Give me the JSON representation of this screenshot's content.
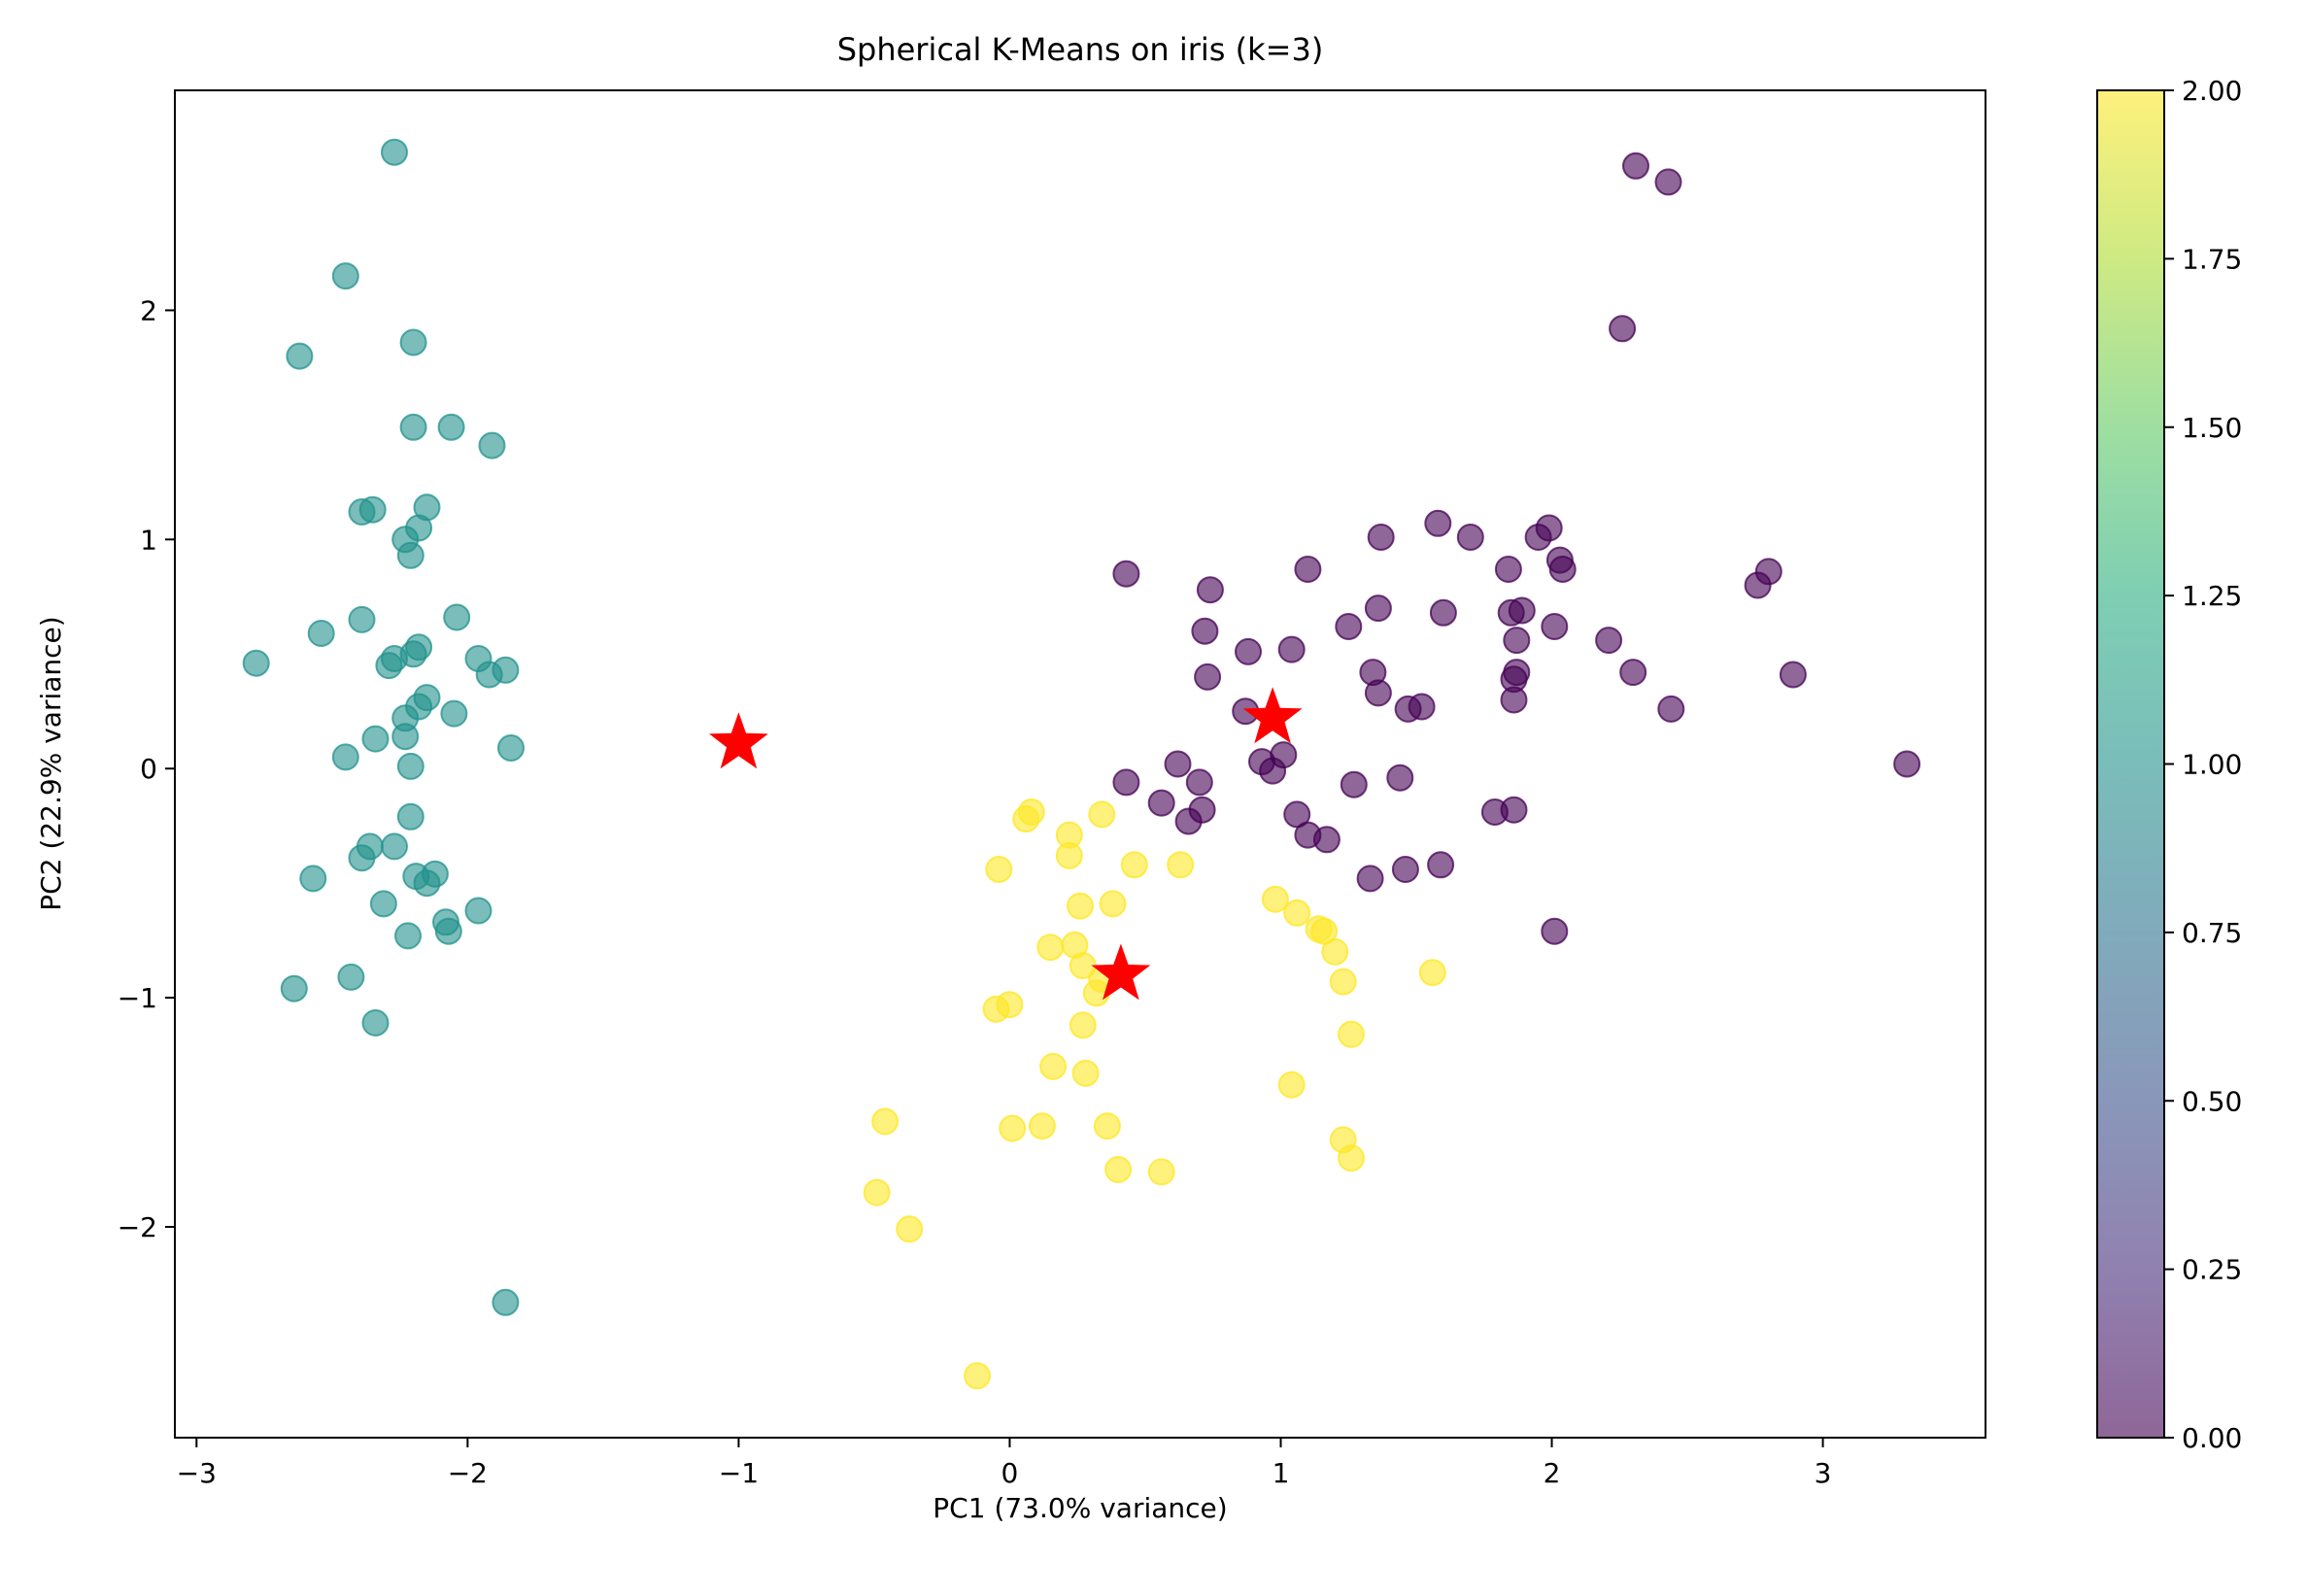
{
  "chart_data": {
    "type": "scatter",
    "title": "Spherical K-Means on iris (k=3)",
    "xlabel": "PC1 (73.0% variance)",
    "ylabel": "PC2 (22.9% variance)",
    "xlim": [
      -3.08,
      3.6
    ],
    "ylim": [
      -2.92,
      2.96
    ],
    "xticks": [
      -3,
      -2,
      -1,
      0,
      1,
      2,
      3
    ],
    "yticks": [
      -2,
      -1,
      0,
      1,
      2
    ],
    "grid": false,
    "colorbar": {
      "range": [
        0,
        2
      ],
      "ticks": [
        "0.00",
        "0.25",
        "0.50",
        "0.75",
        "1.00",
        "1.25",
        "1.50",
        "1.75",
        "2.00"
      ],
      "colormap": "viridis"
    },
    "cluster_colors": {
      "0": "#440154",
      "1": "#21918c",
      "2": "#fde725"
    },
    "centroid_color": "#ff0000",
    "point_alpha": 0.6,
    "series": [
      {
        "cluster": 1,
        "points": [
          [
            -2.27,
            2.69
          ],
          [
            -2.45,
            2.15
          ],
          [
            -2.62,
            1.8
          ],
          [
            -2.2,
            1.86
          ],
          [
            -2.2,
            1.49
          ],
          [
            -2.06,
            1.49
          ],
          [
            -1.91,
            1.41
          ],
          [
            -2.39,
            1.12
          ],
          [
            -2.35,
            1.13
          ],
          [
            -2.15,
            1.14
          ],
          [
            -2.18,
            1.05
          ],
          [
            -2.23,
            1.0
          ],
          [
            -2.21,
            0.93
          ],
          [
            -2.39,
            0.65
          ],
          [
            -2.54,
            0.59
          ],
          [
            -2.04,
            0.66
          ],
          [
            -2.78,
            0.46
          ],
          [
            -2.27,
            0.48
          ],
          [
            -2.29,
            0.45
          ],
          [
            -2.2,
            0.5
          ],
          [
            -2.18,
            0.53
          ],
          [
            -1.96,
            0.48
          ],
          [
            -1.92,
            0.41
          ],
          [
            -1.86,
            0.43
          ],
          [
            -2.15,
            0.31
          ],
          [
            -2.18,
            0.27
          ],
          [
            -2.23,
            0.22
          ],
          [
            -2.05,
            0.24
          ],
          [
            -2.34,
            0.13
          ],
          [
            -2.23,
            0.14
          ],
          [
            -1.84,
            0.09
          ],
          [
            -2.45,
            0.05
          ],
          [
            -2.21,
            0.01
          ],
          [
            -2.21,
            -0.21
          ],
          [
            -2.27,
            -0.34
          ],
          [
            -2.36,
            -0.34
          ],
          [
            -2.39,
            -0.39
          ],
          [
            -2.57,
            -0.48
          ],
          [
            -2.19,
            -0.47
          ],
          [
            -2.15,
            -0.5
          ],
          [
            -2.12,
            -0.46
          ],
          [
            -2.31,
            -0.59
          ],
          [
            -1.96,
            -0.62
          ],
          [
            -2.08,
            -0.67
          ],
          [
            -2.07,
            -0.71
          ],
          [
            -2.22,
            -0.73
          ],
          [
            -2.64,
            -0.96
          ],
          [
            -2.43,
            -0.91
          ],
          [
            -2.34,
            -1.11
          ],
          [
            -1.86,
            -2.33
          ]
        ]
      },
      {
        "cluster": 0,
        "points": [
          [
            2.31,
            2.63
          ],
          [
            2.43,
            2.56
          ],
          [
            2.26,
            1.92
          ],
          [
            0.43,
            0.85
          ],
          [
            0.74,
            0.78
          ],
          [
            1.1,
            0.87
          ],
          [
            1.37,
            1.01
          ],
          [
            1.58,
            1.07
          ],
          [
            1.7,
            1.01
          ],
          [
            1.95,
            1.01
          ],
          [
            1.99,
            1.05
          ],
          [
            2.03,
            0.91
          ],
          [
            2.04,
            0.87
          ],
          [
            2.76,
            0.8
          ],
          [
            2.8,
            0.86
          ],
          [
            1.84,
            0.87
          ],
          [
            0.72,
            0.6
          ],
          [
            0.88,
            0.51
          ],
          [
            1.04,
            0.52
          ],
          [
            1.25,
            0.62
          ],
          [
            1.36,
            0.7
          ],
          [
            1.6,
            0.68
          ],
          [
            1.85,
            0.68
          ],
          [
            1.89,
            0.69
          ],
          [
            1.87,
            0.56
          ],
          [
            2.01,
            0.62
          ],
          [
            2.21,
            0.56
          ],
          [
            0.73,
            0.4
          ],
          [
            1.34,
            0.42
          ],
          [
            1.36,
            0.33
          ],
          [
            1.47,
            0.26
          ],
          [
            1.52,
            0.27
          ],
          [
            1.86,
            0.39
          ],
          [
            1.87,
            0.42
          ],
          [
            1.86,
            0.3
          ],
          [
            2.3,
            0.42
          ],
          [
            2.44,
            0.26
          ],
          [
            2.89,
            0.41
          ],
          [
            0.87,
            0.25
          ],
          [
            0.93,
            0.03
          ],
          [
            0.97,
            -0.01
          ],
          [
            1.01,
            0.06
          ],
          [
            0.62,
            0.02
          ],
          [
            0.43,
            -0.06
          ],
          [
            0.7,
            -0.06
          ],
          [
            0.56,
            -0.15
          ],
          [
            0.66,
            -0.23
          ],
          [
            0.71,
            -0.18
          ],
          [
            1.06,
            -0.2
          ],
          [
            1.1,
            -0.29
          ],
          [
            1.17,
            -0.31
          ],
          [
            1.27,
            -0.07
          ],
          [
            1.44,
            -0.04
          ],
          [
            1.79,
            -0.19
          ],
          [
            1.86,
            -0.18
          ],
          [
            1.33,
            -0.48
          ],
          [
            1.46,
            -0.44
          ],
          [
            1.59,
            -0.42
          ],
          [
            2.01,
            -0.71
          ],
          [
            3.31,
            0.02
          ]
        ]
      },
      {
        "cluster": 2,
        "points": [
          [
            0.08,
            -0.19
          ],
          [
            0.06,
            -0.22
          ],
          [
            0.34,
            -0.2
          ],
          [
            0.22,
            -0.29
          ],
          [
            0.22,
            -0.38
          ],
          [
            -0.04,
            -0.44
          ],
          [
            0.46,
            -0.42
          ],
          [
            0.63,
            -0.42
          ],
          [
            0.26,
            -0.6
          ],
          [
            0.38,
            -0.59
          ],
          [
            0.98,
            -0.57
          ],
          [
            1.06,
            -0.63
          ],
          [
            1.14,
            -0.7
          ],
          [
            1.16,
            -0.71
          ],
          [
            0.15,
            -0.78
          ],
          [
            0.24,
            -0.77
          ],
          [
            0.27,
            -0.86
          ],
          [
            0.34,
            -0.92
          ],
          [
            0.32,
            -0.98
          ],
          [
            1.2,
            -0.8
          ],
          [
            1.23,
            -0.93
          ],
          [
            1.56,
            -0.89
          ],
          [
            -0.05,
            -1.05
          ],
          [
            0.0,
            -1.03
          ],
          [
            0.27,
            -1.12
          ],
          [
            1.26,
            -1.16
          ],
          [
            0.16,
            -1.3
          ],
          [
            0.28,
            -1.33
          ],
          [
            1.04,
            -1.38
          ],
          [
            -0.46,
            -1.54
          ],
          [
            0.01,
            -1.57
          ],
          [
            0.12,
            -1.56
          ],
          [
            0.36,
            -1.56
          ],
          [
            0.4,
            -1.75
          ],
          [
            0.56,
            -1.76
          ],
          [
            1.23,
            -1.62
          ],
          [
            1.26,
            -1.7
          ],
          [
            -0.49,
            -1.85
          ],
          [
            -0.37,
            -2.01
          ],
          [
            -0.12,
            -2.65
          ]
        ]
      }
    ],
    "centroids": [
      {
        "x": -1.0,
        "y": 0.11
      },
      {
        "x": 0.97,
        "y": 0.22
      },
      {
        "x": 0.41,
        "y": -0.9
      }
    ]
  }
}
